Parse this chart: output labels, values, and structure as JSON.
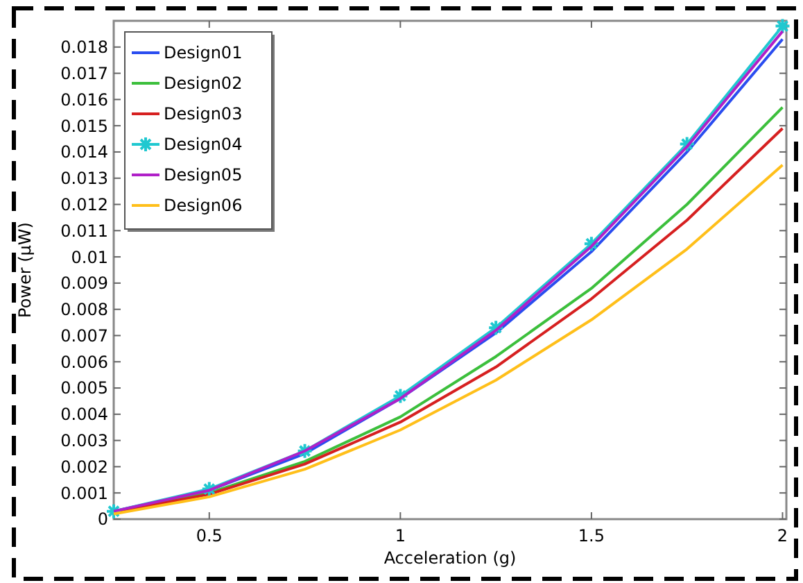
{
  "chart_data": {
    "type": "line",
    "xlabel": "Acceleration (g)",
    "ylabel": "Power (μW)",
    "x": [
      0.25,
      0.5,
      0.75,
      1,
      1.25,
      1.5,
      1.75,
      2
    ],
    "xlim": [
      0.25,
      2.01
    ],
    "xticks": [
      0.5,
      1,
      1.5,
      2
    ],
    "ylim": [
      0,
      0.019
    ],
    "yticks": [
      0,
      0.001,
      0.002,
      0.003,
      0.004,
      0.005,
      0.006,
      0.007,
      0.008,
      0.009,
      0.01,
      0.011,
      0.012,
      0.013,
      0.014,
      0.015,
      0.016,
      0.017,
      0.018
    ],
    "grid": false,
    "legend": "top left",
    "marker": "none",
    "line_style": "solid",
    "series": [
      {
        "name": "Design01",
        "color": "#2a4df0",
        "values": [
          0.0003,
          0.0011,
          0.0025,
          0.0046,
          0.0071,
          0.0102,
          0.014,
          0.0183
        ]
      },
      {
        "name": "Design02",
        "color": "#3cbf3c",
        "values": [
          0.00025,
          0.001,
          0.0022,
          0.0039,
          0.0062,
          0.0088,
          0.012,
          0.0157
        ]
      },
      {
        "name": "Design03",
        "color": "#d62020",
        "values": [
          0.00025,
          0.00095,
          0.0021,
          0.0037,
          0.0058,
          0.0084,
          0.0114,
          0.0149
        ]
      },
      {
        "name": "Design04",
        "color": "#20c8d0",
        "marker": "cross",
        "values": [
          0.0003,
          0.00115,
          0.0026,
          0.0047,
          0.0073,
          0.0105,
          0.0143,
          0.0188
        ]
      },
      {
        "name": "Design05",
        "color": "#b020c8",
        "values": [
          0.0003,
          0.0011,
          0.0026,
          0.0046,
          0.0072,
          0.0104,
          0.0142,
          0.0186
        ]
      },
      {
        "name": "Design06",
        "color": "#ffbf1a",
        "values": [
          0.0002,
          0.00085,
          0.0019,
          0.0034,
          0.0053,
          0.0076,
          0.0103,
          0.0135
        ]
      }
    ]
  }
}
